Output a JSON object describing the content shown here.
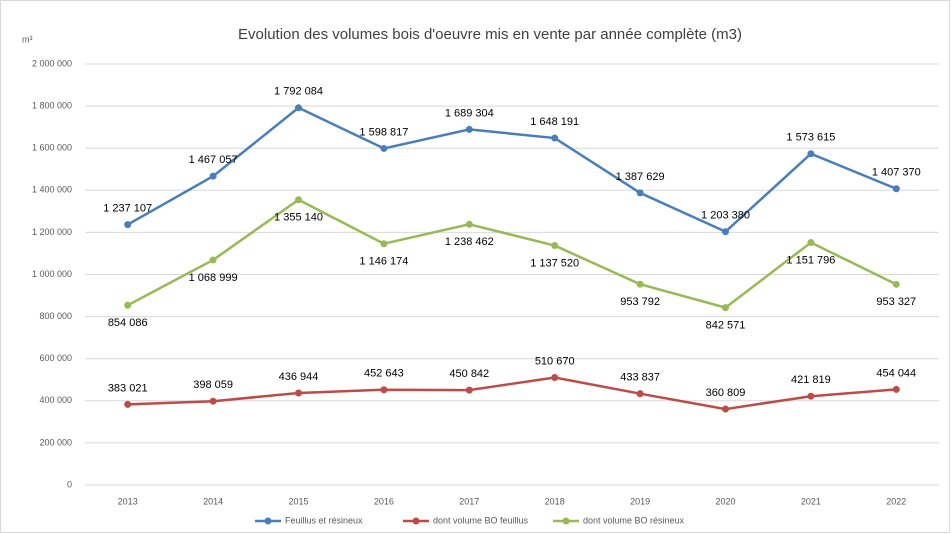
{
  "chart_data": {
    "type": "line",
    "title": "Evolution des volumes bois d'oeuvre mis en vente par année complète (m3)",
    "y_unit": "m³",
    "categories": [
      "2013",
      "2014",
      "2015",
      "2016",
      "2017",
      "2018",
      "2019",
      "2020",
      "2021",
      "2022"
    ],
    "series": [
      {
        "name": "Feuillus et résineux",
        "color": "#4a7ebb",
        "values": [
          1237107,
          1467057,
          1792084,
          1598817,
          1689304,
          1648191,
          1387629,
          1203380,
          1573615,
          1407370
        ],
        "value_labels": [
          "1 237 107",
          "1 467 057",
          "1 792 084",
          "1 598 817",
          "1 689 304",
          "1 648 191",
          "1 387 629",
          "1 203 380",
          "1 573 615",
          "1 407 370"
        ]
      },
      {
        "name": "dont volume BO feuillus",
        "color": "#be4b48",
        "values": [
          383021,
          398059,
          436944,
          452643,
          450842,
          510670,
          433837,
          360809,
          421819,
          454044
        ],
        "value_labels": [
          "383 021",
          "398 059",
          "436 944",
          "452 643",
          "450 842",
          "510 670",
          "433 837",
          "360 809",
          "421 819",
          "454 044"
        ]
      },
      {
        "name": "dont volume BO résineux",
        "color": "#98b954",
        "values": [
          854086,
          1068999,
          1355140,
          1146174,
          1238462,
          1137520,
          953792,
          842571,
          1151796,
          953327
        ],
        "value_labels": [
          "854 086",
          "1 068 999",
          "1 355 140",
          "1 146 174",
          "1 238 462",
          "1 137 520",
          "953 792",
          "842 571",
          "1 151 796",
          "953 327"
        ]
      }
    ],
    "ylim": [
      0,
      2000000
    ],
    "yticks": [
      0,
      {
        "value": 200000,
        "label": "200 000"
      },
      {
        "value": 400000,
        "label": "400 000"
      },
      {
        "value": 600000,
        "label": "600 000"
      },
      {
        "value": 800000,
        "label": "800 000"
      },
      {
        "value": 1000000,
        "label": "1 000 000"
      },
      {
        "value": 1200000,
        "label": "1 200 000"
      },
      {
        "value": 1400000,
        "label": "1 400 000"
      },
      {
        "value": 1600000,
        "label": "1 600 000"
      },
      {
        "value": 1800000,
        "label": "1 800 000"
      },
      {
        "value": 2000000,
        "label": "2 000 000"
      }
    ],
    "grid": true,
    "legend": "bottom"
  }
}
